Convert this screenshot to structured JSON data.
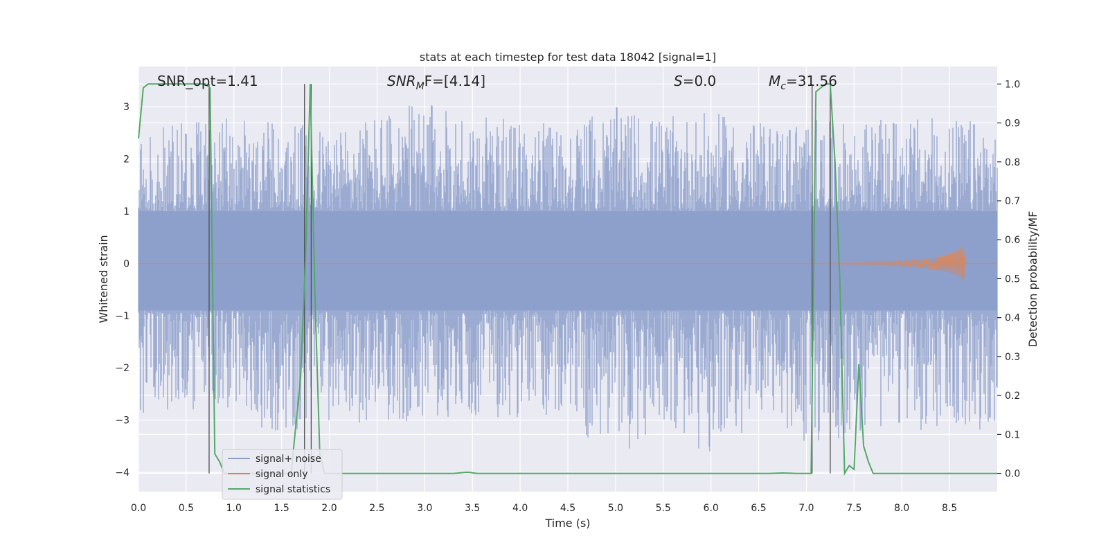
{
  "chart_data": {
    "type": "line",
    "title": "stats at each timestep for test data 18042 [signal=1]",
    "xlabel": "Time (s)",
    "ylabel_left": "Whitened strain",
    "ylabel_right": "Detection probability/MF",
    "xlim": [
      0.0,
      9.0
    ],
    "ylim_left": [
      -4.37,
      3.77
    ],
    "ylim_right": [
      -0.047,
      1.045
    ],
    "x_ticks": [
      "0.0",
      "0.5",
      "1.0",
      "1.5",
      "2.0",
      "2.5",
      "3.0",
      "3.5",
      "4.0",
      "4.5",
      "5.0",
      "5.5",
      "6.0",
      "6.5",
      "7.0",
      "7.5",
      "8.0",
      "8.5"
    ],
    "x_tick_values": [
      0.0,
      0.5,
      1.0,
      1.5,
      2.0,
      2.5,
      3.0,
      3.5,
      4.0,
      4.5,
      5.0,
      5.5,
      6.0,
      6.5,
      7.0,
      7.5,
      8.0,
      8.5
    ],
    "y_left_ticks": [
      "3",
      "2",
      "1",
      "0",
      "−1",
      "−2",
      "−3",
      "−4"
    ],
    "y_left_tick_values": [
      3,
      2,
      1,
      0,
      -1,
      -2,
      -3,
      -4
    ],
    "y_right_ticks": [
      "1.0",
      "0.9",
      "0.8",
      "0.7",
      "0.6",
      "0.5",
      "0.4",
      "0.3",
      "0.2",
      "0.1",
      "0.0"
    ],
    "y_right_tick_values": [
      1.0,
      0.9,
      0.8,
      0.7,
      0.6,
      0.5,
      0.4,
      0.3,
      0.2,
      0.1,
      0.0
    ],
    "annotations": {
      "snr_opt": "SNR_opt=1.41",
      "snr_mf_main": "SNR",
      "snr_mf_sub": "M",
      "snr_mf_rest": "F=[4.14]",
      "s_var": "S",
      "s_rest": "=0.0",
      "mc_var": "M",
      "mc_sub": "c",
      "mc_rest": "=31.56"
    },
    "vertical_lines_x": [
      0.74,
      1.74,
      1.81,
      7.06,
      7.25
    ],
    "series": [
      {
        "name": "signal+ noise",
        "color": "#8c9fcb",
        "envelope_x": [
          0.0,
          0.5,
          1.0,
          1.5,
          2.0,
          2.5,
          3.0,
          3.5,
          4.0,
          4.5,
          5.0,
          5.5,
          6.0,
          6.5,
          7.0,
          7.5,
          8.0,
          8.5,
          9.0
        ],
        "envelope_upper": [
          2.6,
          2.7,
          2.8,
          2.7,
          2.6,
          2.9,
          3.1,
          2.9,
          2.7,
          2.7,
          3.0,
          2.8,
          2.9,
          2.7,
          2.8,
          2.7,
          2.8,
          2.8,
          2.7
        ],
        "envelope_lower": [
          -2.9,
          -2.8,
          -2.9,
          -3.4,
          -3.0,
          -3.1,
          -3.0,
          -2.9,
          -3.0,
          -3.0,
          -3.8,
          -3.1,
          -3.8,
          -3.0,
          -3.5,
          -3.3,
          -3.1,
          -3.4,
          -3.2
        ]
      },
      {
        "name": "signal only",
        "color": "#dd8452",
        "x": [
          0.0,
          7.0,
          7.5,
          8.0,
          8.3,
          8.5,
          8.6,
          8.65,
          8.67,
          9.0
        ],
        "amplitude": [
          0.0,
          0.0,
          0.02,
          0.05,
          0.1,
          0.18,
          0.28,
          0.34,
          0.0,
          0.0
        ]
      },
      {
        "name": "signal statistics",
        "color": "#55a868",
        "x": [
          0.0,
          0.05,
          0.1,
          0.15,
          0.2,
          0.3,
          0.4,
          0.5,
          0.6,
          0.7,
          0.75,
          0.8,
          0.85,
          0.9,
          1.0,
          1.1,
          1.2,
          1.3,
          1.4,
          1.5,
          1.6,
          1.7,
          1.75,
          1.8,
          1.85,
          1.9,
          1.95,
          2.0,
          2.5,
          3.0,
          3.3,
          3.45,
          3.55,
          3.7,
          4.0,
          5.0,
          6.0,
          6.6,
          6.75,
          6.9,
          7.0,
          7.05,
          7.1,
          7.15,
          7.2,
          7.25,
          7.3,
          7.35,
          7.4,
          7.45,
          7.5,
          7.55,
          7.6,
          7.65,
          7.7,
          7.75,
          8.0,
          8.5,
          9.0
        ],
        "y": [
          0.86,
          0.99,
          1.0,
          1.0,
          1.0,
          1.0,
          1.0,
          1.0,
          1.0,
          1.0,
          0.99,
          0.05,
          0.03,
          0.0,
          0.0,
          0.0,
          0.0,
          0.0,
          0.0,
          0.0,
          0.0,
          0.25,
          0.55,
          1.0,
          0.45,
          0.05,
          0.0,
          0.0,
          0.0,
          0.0,
          0.0,
          0.003,
          0.0,
          0.0,
          0.0,
          0.0,
          0.0,
          0.0,
          0.001,
          0.0,
          0.0,
          0.0,
          0.98,
          0.99,
          1.0,
          1.0,
          0.8,
          0.5,
          0.0,
          0.02,
          0.01,
          0.28,
          0.07,
          0.03,
          0.0,
          0.0,
          0.0,
          0.0,
          0.0
        ]
      }
    ],
    "legend": {
      "placement": "lower-left",
      "entries": [
        "signal+ noise",
        "signal only",
        "signal statistics"
      ]
    },
    "grid": true,
    "style": {
      "axes_bg": "#eaeaf2",
      "grid_color": "#ffffff",
      "text_color": "#262626",
      "vline_color": "#4d4d4d"
    }
  }
}
